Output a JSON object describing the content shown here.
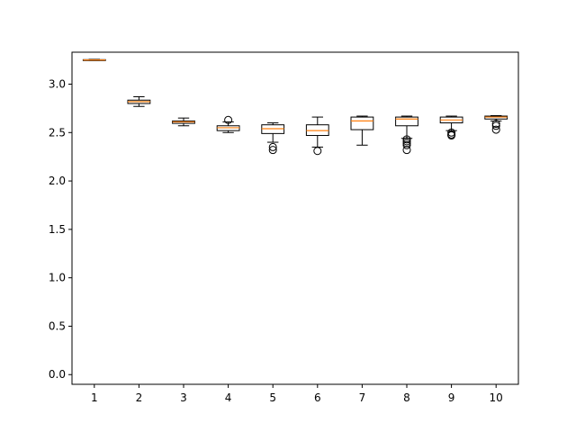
{
  "chart_data": {
    "type": "boxplot",
    "title": "",
    "xlabel": "",
    "ylabel": "",
    "ylim": [
      -0.1,
      3.33
    ],
    "yticks": [
      "0.0",
      "0.5",
      "1.0",
      "1.5",
      "2.0",
      "2.5",
      "3.0"
    ],
    "xlim": [
      0.5,
      10.5
    ],
    "grid": false,
    "colors": {
      "median": "#ff7f0e",
      "box": "#000000"
    },
    "categories": [
      "1",
      "2",
      "3",
      "4",
      "5",
      "6",
      "7",
      "8",
      "9",
      "10"
    ],
    "boxes": [
      {
        "category": "1",
        "whisker_low": 3.245,
        "q1": 3.248,
        "median": 3.25,
        "q3": 3.253,
        "whisker_high": 3.256,
        "fliers": []
      },
      {
        "category": "2",
        "whisker_low": 2.77,
        "q1": 2.8,
        "median": 2.82,
        "q3": 2.835,
        "whisker_high": 2.87,
        "fliers": []
      },
      {
        "category": "3",
        "whisker_low": 2.57,
        "q1": 2.595,
        "median": 2.61,
        "q3": 2.62,
        "whisker_high": 2.65,
        "fliers": []
      },
      {
        "category": "4",
        "whisker_low": 2.5,
        "q1": 2.52,
        "median": 2.55,
        "q3": 2.57,
        "whisker_high": 2.61,
        "fliers": [
          2.63
        ]
      },
      {
        "category": "5",
        "whisker_low": 2.4,
        "q1": 2.49,
        "median": 2.54,
        "q3": 2.58,
        "whisker_high": 2.6,
        "fliers": [
          2.35,
          2.32
        ]
      },
      {
        "category": "6",
        "whisker_low": 2.35,
        "q1": 2.47,
        "median": 2.52,
        "q3": 2.58,
        "whisker_high": 2.66,
        "fliers": [
          2.31
        ]
      },
      {
        "category": "7",
        "whisker_low": 2.37,
        "q1": 2.53,
        "median": 2.62,
        "q3": 2.66,
        "whisker_high": 2.67,
        "fliers": []
      },
      {
        "category": "8",
        "whisker_low": 2.44,
        "q1": 2.57,
        "median": 2.64,
        "q3": 2.66,
        "whisker_high": 2.67,
        "fliers": [
          2.43,
          2.41,
          2.39,
          2.37,
          2.32
        ]
      },
      {
        "category": "9",
        "whisker_low": 2.52,
        "q1": 2.6,
        "median": 2.63,
        "q3": 2.66,
        "whisker_high": 2.67,
        "fliers": [
          2.5,
          2.48,
          2.47
        ]
      },
      {
        "category": "10",
        "whisker_low": 2.62,
        "q1": 2.64,
        "median": 2.66,
        "q3": 2.67,
        "whisker_high": 2.675,
        "fliers": [
          2.59,
          2.57,
          2.53
        ]
      }
    ]
  }
}
